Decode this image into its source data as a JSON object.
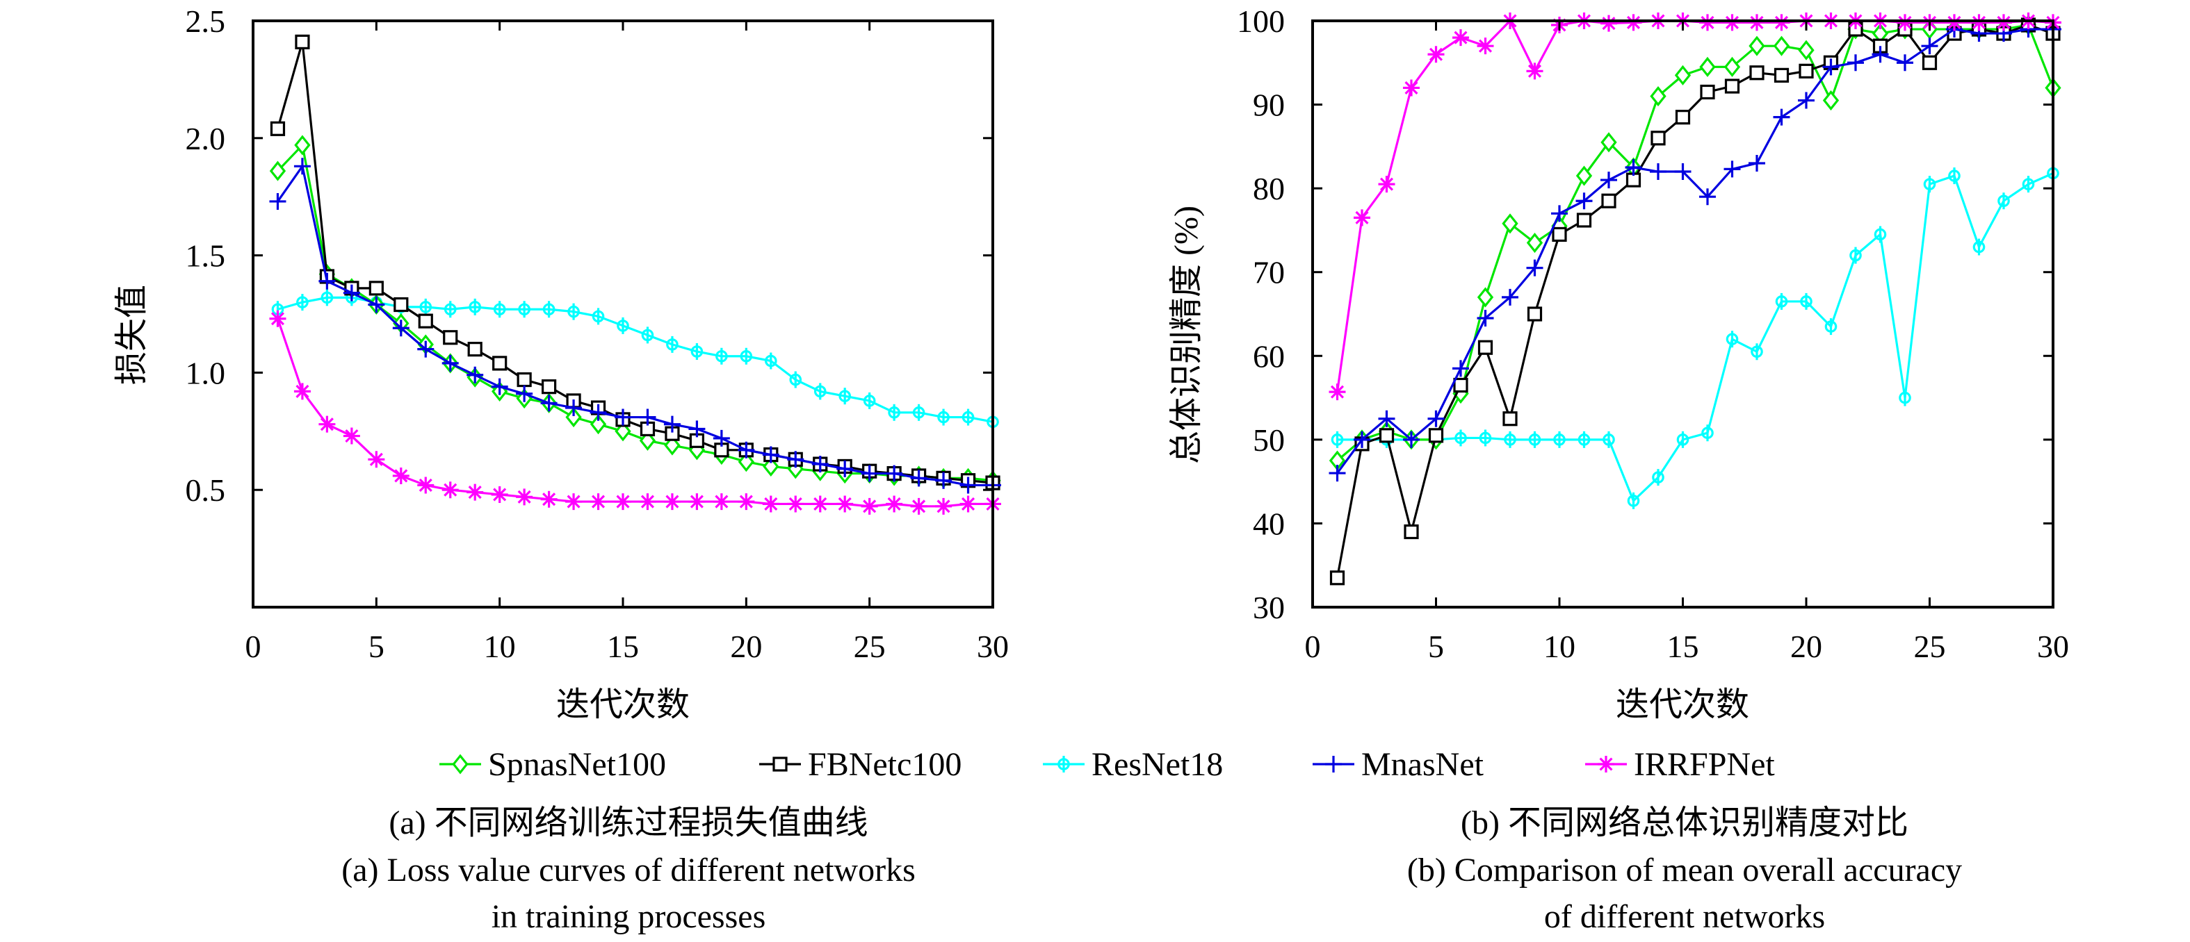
{
  "legend": [
    {
      "name": "SpnasNet100",
      "color": "#00e600",
      "marker": "diamond"
    },
    {
      "name": "FBNetc100",
      "color": "#000000",
      "marker": "square"
    },
    {
      "name": "ResNet18",
      "color": "#00ffff",
      "marker": "circle-star"
    },
    {
      "name": "MnasNet",
      "color": "#0000e0",
      "marker": "plus"
    },
    {
      "name": "IRRFPNet",
      "color": "#ff00ff",
      "marker": "asterisk"
    }
  ],
  "captions": {
    "a_cn": "(a) 不同网络训练过程损失值曲线",
    "a_en_1": "(a) Loss value curves of different networks",
    "a_en_2": "in training processes",
    "b_cn": "(b) 不同网络总体识别精度对比",
    "b_en_1": "(b) Comparison of mean overall accuracy",
    "b_en_2": "of different networks"
  },
  "chart_data": [
    {
      "type": "line",
      "title": "",
      "xlabel": "迭代次数",
      "ylabel": "损失值",
      "xlim": [
        0,
        30
      ],
      "ylim": [
        0,
        2.5
      ],
      "xticks": [
        "0",
        "5",
        "10",
        "15",
        "20",
        "25",
        "30"
      ],
      "yticks": [
        "0.5",
        "1.0",
        "1.5",
        "2.0",
        "2.5"
      ],
      "ytick_values": [
        0.5,
        1.0,
        1.5,
        2.0,
        2.5
      ],
      "xtick_values": [
        0,
        5,
        10,
        15,
        20,
        25,
        30
      ],
      "grid": false,
      "legend_position": "bottom-center",
      "x": [
        1,
        2,
        3,
        4,
        5,
        6,
        7,
        8,
        9,
        10,
        11,
        12,
        13,
        14,
        15,
        16,
        17,
        18,
        19,
        20,
        21,
        22,
        23,
        24,
        25,
        26,
        27,
        28,
        29,
        30
      ],
      "series": [
        {
          "name": "SpnasNet100",
          "values": [
            1.86,
            1.97,
            1.42,
            1.36,
            1.29,
            1.21,
            1.12,
            1.04,
            0.98,
            0.92,
            0.89,
            0.87,
            0.81,
            0.78,
            0.75,
            0.71,
            0.69,
            0.67,
            0.65,
            0.62,
            0.6,
            0.59,
            0.58,
            0.57,
            0.57,
            0.56,
            0.56,
            0.55,
            0.55,
            0.54
          ]
        },
        {
          "name": "FBNetc100",
          "values": [
            2.04,
            2.41,
            1.41,
            1.36,
            1.36,
            1.29,
            1.22,
            1.15,
            1.1,
            1.04,
            0.97,
            0.94,
            0.88,
            0.85,
            0.8,
            0.76,
            0.74,
            0.71,
            0.67,
            0.67,
            0.65,
            0.63,
            0.61,
            0.6,
            0.58,
            0.57,
            0.56,
            0.55,
            0.54,
            0.53
          ]
        },
        {
          "name": "ResNet18",
          "values": [
            1.27,
            1.3,
            1.32,
            1.32,
            1.3,
            1.28,
            1.28,
            1.27,
            1.28,
            1.27,
            1.27,
            1.27,
            1.26,
            1.24,
            1.2,
            1.16,
            1.12,
            1.09,
            1.07,
            1.07,
            1.05,
            0.97,
            0.92,
            0.9,
            0.88,
            0.83,
            0.83,
            0.81,
            0.81,
            0.79
          ]
        },
        {
          "name": "MnasNet",
          "values": [
            1.73,
            1.88,
            1.39,
            1.34,
            1.29,
            1.19,
            1.1,
            1.04,
            0.99,
            0.94,
            0.91,
            0.87,
            0.85,
            0.83,
            0.81,
            0.81,
            0.78,
            0.76,
            0.72,
            0.67,
            0.65,
            0.63,
            0.61,
            0.59,
            0.57,
            0.57,
            0.55,
            0.54,
            0.52,
            0.52
          ]
        },
        {
          "name": "IRRFPNet",
          "values": [
            1.23,
            0.92,
            0.78,
            0.73,
            0.63,
            0.56,
            0.52,
            0.5,
            0.49,
            0.48,
            0.47,
            0.46,
            0.45,
            0.45,
            0.45,
            0.45,
            0.45,
            0.45,
            0.45,
            0.45,
            0.44,
            0.44,
            0.44,
            0.44,
            0.43,
            0.44,
            0.43,
            0.43,
            0.44,
            0.44
          ]
        }
      ]
    },
    {
      "type": "line",
      "title": "",
      "xlabel": "迭代次数",
      "ylabel": "总体识别精度 (%)",
      "xlim": [
        0,
        30
      ],
      "ylim": [
        30,
        100
      ],
      "xticks": [
        "0",
        "5",
        "10",
        "15",
        "20",
        "25",
        "30"
      ],
      "yticks": [
        "30",
        "40",
        "50",
        "60",
        "70",
        "80",
        "90",
        "100"
      ],
      "ytick_values": [
        30,
        40,
        50,
        60,
        70,
        80,
        90,
        100
      ],
      "xtick_values": [
        0,
        5,
        10,
        15,
        20,
        25,
        30
      ],
      "grid": false,
      "legend_position": "bottom-center",
      "x": [
        1,
        2,
        3,
        4,
        5,
        6,
        7,
        8,
        9,
        10,
        11,
        12,
        13,
        14,
        15,
        16,
        17,
        18,
        19,
        20,
        21,
        22,
        23,
        24,
        25,
        26,
        27,
        28,
        29,
        30
      ],
      "series": [
        {
          "name": "SpnasNet100",
          "values": [
            47.5,
            50,
            51,
            50,
            50,
            55.5,
            67,
            75.8,
            73.5,
            75.5,
            81.5,
            85.5,
            82.5,
            91,
            93.5,
            94.5,
            94.5,
            97,
            97,
            96.5,
            90.5,
            99,
            98.5,
            99,
            99,
            99,
            99,
            99,
            99.5,
            92
          ]
        },
        {
          "name": "FBNetc100",
          "values": [
            33.5,
            49.5,
            50.5,
            39,
            50.5,
            56.5,
            61,
            52.5,
            65,
            74.5,
            76.2,
            78.5,
            81,
            86,
            88.5,
            91.5,
            92.2,
            93.8,
            93.5,
            94,
            95,
            99,
            97,
            99,
            95,
            98.5,
            99,
            98.5,
            99.5,
            98.5
          ]
        },
        {
          "name": "ResNet18",
          "values": [
            50,
            50,
            50,
            50,
            50,
            50.2,
            50.2,
            50,
            50,
            50,
            50,
            50,
            42.7,
            45.5,
            50,
            50.8,
            62,
            60.5,
            66.5,
            66.5,
            63.5,
            72,
            74.5,
            55,
            80.5,
            81.5,
            73,
            78.5,
            80.5,
            81.8
          ]
        },
        {
          "name": "MnasNet",
          "values": [
            46,
            50,
            52.5,
            50,
            52.5,
            58.5,
            64.5,
            67,
            70.5,
            77,
            78.5,
            81,
            82.5,
            82,
            82,
            79,
            82.3,
            83,
            88.5,
            90.5,
            94.5,
            95,
            96,
            95,
            97,
            99,
            98.5,
            98.5,
            99,
            99
          ]
        },
        {
          "name": "IRRFPNet",
          "values": [
            55.7,
            76.5,
            80.5,
            92,
            96,
            98,
            97,
            100,
            94,
            99.5,
            100,
            99.7,
            99.8,
            100,
            100,
            99.8,
            99.8,
            99.8,
            99.8,
            100,
            100,
            100,
            100,
            99.8,
            99.8,
            99.8,
            99.8,
            99.8,
            100,
            99.8
          ]
        }
      ]
    }
  ]
}
